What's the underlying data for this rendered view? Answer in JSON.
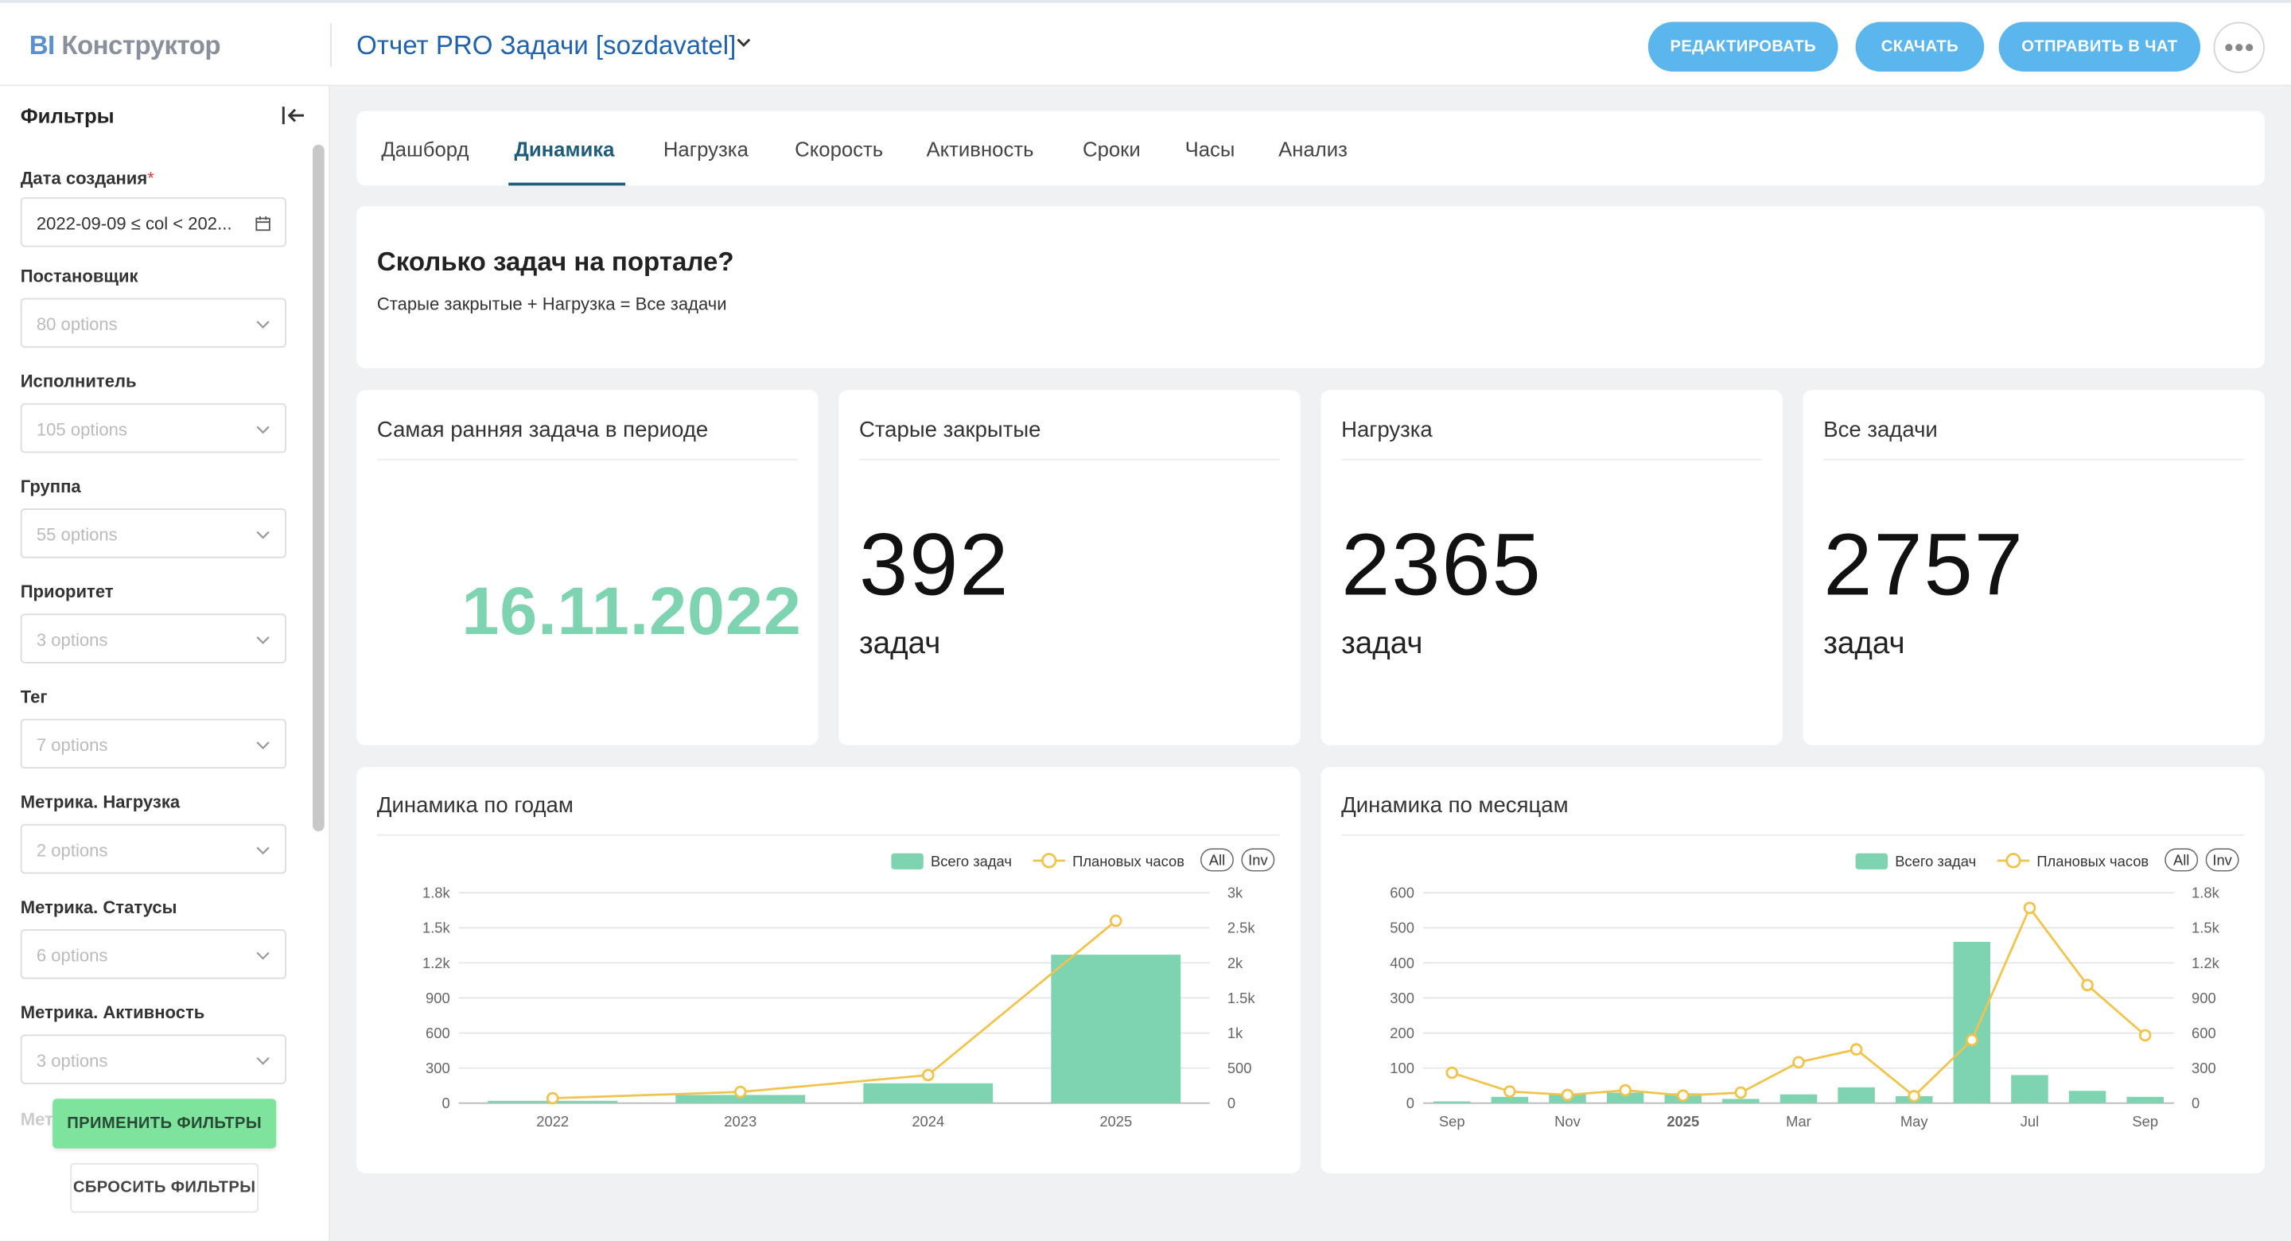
{
  "brand": {
    "bi": "BI",
    "rest": "Конструктор"
  },
  "report_title": "Отчет PRO Задачи [sozdavatel]",
  "header_buttons": {
    "edit": "РЕДАКТИРОВАТЬ",
    "download": "СКАЧАТЬ",
    "send": "ОТПРАВИТЬ В ЧАТ"
  },
  "sidebar": {
    "title": "Фильтры",
    "filters": [
      {
        "label": "Дата создания",
        "required": "*",
        "value": "2022-09-09 ≤ col < 202..."
      },
      {
        "label": "Постановщик",
        "placeholder": "80 options"
      },
      {
        "label": "Исполнитель",
        "placeholder": "105 options"
      },
      {
        "label": "Группа",
        "placeholder": "55 options"
      },
      {
        "label": "Приоритет",
        "placeholder": "3 options"
      },
      {
        "label": "Тег",
        "placeholder": "7 options"
      },
      {
        "label": "Метрика. Нагрузка",
        "placeholder": "2 options"
      },
      {
        "label": "Метрика. Статусы",
        "placeholder": "6 options"
      },
      {
        "label": "Метрика. Активность",
        "placeholder": "3 options"
      }
    ],
    "cut_label": "Мет",
    "apply": "ПРИМЕНИТЬ ФИЛЬТРЫ",
    "reset": "СБРОСИТЬ ФИЛЬТРЫ"
  },
  "tabs": [
    "Дашборд",
    "Динамика",
    "Нагрузка",
    "Скорость",
    "Активность",
    "Сроки",
    "Часы",
    "Анализ"
  ],
  "active_tab": "Динамика",
  "question": {
    "title": "Сколько задач на портале?",
    "subtitle": "Старые закрытые + Нагрузка = Все задачи"
  },
  "kpis": {
    "earliest": {
      "title": "Самая ранняя задача в периоде",
      "value": "16.11.2022"
    },
    "old_closed": {
      "title": "Старые закрытые",
      "value": "392",
      "unit": "задач"
    },
    "load": {
      "title": "Нагрузка",
      "value": "2365",
      "unit": "задач"
    },
    "all": {
      "title": "Все задачи",
      "value": "2757",
      "unit": "задач"
    }
  },
  "colors": {
    "bar": "#7ed3b0",
    "line": "#f0c44c",
    "pill": "#5cb6ee",
    "apply": "#7ee39c"
  },
  "chart_data": [
    {
      "type": "bar",
      "title": "Динамика по годам",
      "legend": {
        "items": [
          "Всего задач",
          "Плановых часов"
        ],
        "placement": "top-right",
        "buttons": [
          "All",
          "Inv"
        ]
      },
      "categories": [
        "2022",
        "2023",
        "2024",
        "2025"
      ],
      "series": [
        {
          "name": "Всего задач",
          "type": "bar",
          "axis": "left",
          "values": [
            20,
            70,
            170,
            1270
          ]
        },
        {
          "name": "Плановых часов",
          "type": "line",
          "axis": "right",
          "values": [
            70,
            160,
            400,
            2600
          ]
        }
      ],
      "y_left": {
        "min": 0,
        "max": 1800,
        "ticks": [
          "0",
          "300",
          "600",
          "900",
          "1.2k",
          "1.5k",
          "1.8k"
        ]
      },
      "y_right": {
        "min": 0,
        "max": 3000,
        "ticks": [
          "0",
          "500",
          "1k",
          "1.5k",
          "2k",
          "2.5k",
          "3k"
        ]
      }
    },
    {
      "type": "bar",
      "title": "Динамика по месяцам",
      "legend": {
        "items": [
          "Всего задач",
          "Плановых часов"
        ],
        "placement": "top-right",
        "buttons": [
          "All",
          "Inv"
        ]
      },
      "categories": [
        "2024-09",
        "2024-10",
        "2024-11",
        "2024-12",
        "2025-01",
        "2025-02",
        "2025-03",
        "2025-04",
        "2025-05",
        "2025-06",
        "2025-07",
        "2025-08",
        "2025-09"
      ],
      "x_tick_labels": [
        "Sep",
        "Nov",
        "2025",
        "Mar",
        "May",
        "Jul",
        "Sep"
      ],
      "series": [
        {
          "name": "Всего задач",
          "type": "bar",
          "axis": "left",
          "values": [
            5,
            18,
            25,
            30,
            28,
            12,
            25,
            45,
            20,
            460,
            80,
            35,
            18
          ]
        },
        {
          "name": "Плановых часов",
          "type": "line",
          "axis": "right",
          "values": [
            260,
            100,
            70,
            110,
            65,
            90,
            350,
            460,
            60,
            540,
            1670,
            1010,
            580
          ]
        }
      ],
      "y_left": {
        "min": 0,
        "max": 600,
        "ticks": [
          "0",
          "100",
          "200",
          "300",
          "400",
          "500",
          "600"
        ]
      },
      "y_right": {
        "min": 0,
        "max": 1800,
        "ticks": [
          "0",
          "300",
          "600",
          "900",
          "1.2k",
          "1.5k",
          "1.8k"
        ]
      }
    }
  ]
}
